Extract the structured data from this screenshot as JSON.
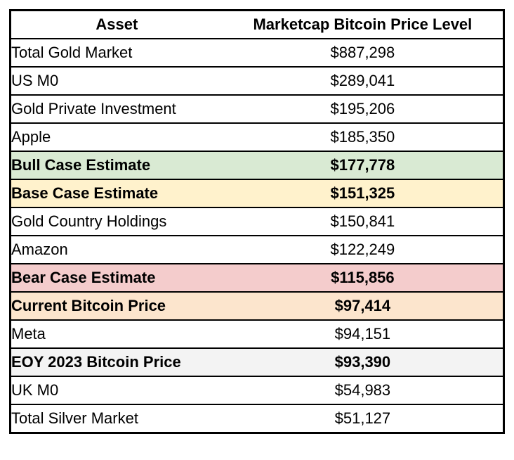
{
  "table": {
    "headers": [
      {
        "label": "Asset"
      },
      {
        "label": "Marketcap Bitcoin Price Level"
      }
    ],
    "rows": [
      {
        "asset": "Total Gold Market",
        "value": "$887,298",
        "highlight": "none",
        "bold": false
      },
      {
        "asset": "US M0",
        "value": "$289,041",
        "highlight": "none",
        "bold": false
      },
      {
        "asset": "Gold Private Investment",
        "value": "$195,206",
        "highlight": "none",
        "bold": false
      },
      {
        "asset": "Apple",
        "value": "$185,350",
        "highlight": "none",
        "bold": false
      },
      {
        "asset": "Bull Case Estimate",
        "value": "$177,778",
        "highlight": "green",
        "bold": true
      },
      {
        "asset": "Base Case Estimate",
        "value": "$151,325",
        "highlight": "yellow",
        "bold": true
      },
      {
        "asset": "Gold Country Holdings",
        "value": "$150,841",
        "highlight": "none",
        "bold": false
      },
      {
        "asset": "Amazon",
        "value": "$122,249",
        "highlight": "none",
        "bold": false
      },
      {
        "asset": "Bear Case Estimate",
        "value": "$115,856",
        "highlight": "red",
        "bold": true
      },
      {
        "asset": "Current Bitcoin Price",
        "value": "$97,414",
        "highlight": "orange",
        "bold": true
      },
      {
        "asset": "Meta",
        "value": "$94,151",
        "highlight": "none",
        "bold": false
      },
      {
        "asset": "EOY 2023 Bitcoin Price",
        "value": "$93,390",
        "highlight": "gray",
        "bold": true
      },
      {
        "asset": "UK M0",
        "value": "$54,983",
        "highlight": "none",
        "bold": false
      },
      {
        "asset": "Total Silver Market",
        "value": "$51,127",
        "highlight": "none",
        "bold": false
      }
    ]
  },
  "colors": {
    "green": "#d9ead3",
    "yellow": "#fff2cc",
    "red": "#f4cccc",
    "orange": "#fce5cd",
    "gray": "#f3f3f3",
    "none": "#ffffff",
    "border": "#000000"
  },
  "chart_data": {
    "type": "table",
    "columns": [
      "Asset",
      "Marketcap Bitcoin Price Level"
    ],
    "rows": [
      {
        "asset": "Total Gold Market",
        "price_level_usd": 887298,
        "highlight": "none"
      },
      {
        "asset": "US M0",
        "price_level_usd": 289041,
        "highlight": "none"
      },
      {
        "asset": "Gold Private Investment",
        "price_level_usd": 195206,
        "highlight": "none"
      },
      {
        "asset": "Apple",
        "price_level_usd": 185350,
        "highlight": "none"
      },
      {
        "asset": "Bull Case Estimate",
        "price_level_usd": 177778,
        "highlight": "green"
      },
      {
        "asset": "Base Case Estimate",
        "price_level_usd": 151325,
        "highlight": "yellow"
      },
      {
        "asset": "Gold Country Holdings",
        "price_level_usd": 150841,
        "highlight": "none"
      },
      {
        "asset": "Amazon",
        "price_level_usd": 122249,
        "highlight": "none"
      },
      {
        "asset": "Bear Case Estimate",
        "price_level_usd": 115856,
        "highlight": "red"
      },
      {
        "asset": "Current Bitcoin Price",
        "price_level_usd": 97414,
        "highlight": "orange"
      },
      {
        "asset": "Meta",
        "price_level_usd": 94151,
        "highlight": "none"
      },
      {
        "asset": "EOY 2023 Bitcoin Price",
        "price_level_usd": 93390,
        "highlight": "gray"
      },
      {
        "asset": "UK M0",
        "price_level_usd": 54983,
        "highlight": "none"
      },
      {
        "asset": "Total Silver Market",
        "price_level_usd": 51127,
        "highlight": "none"
      }
    ]
  }
}
